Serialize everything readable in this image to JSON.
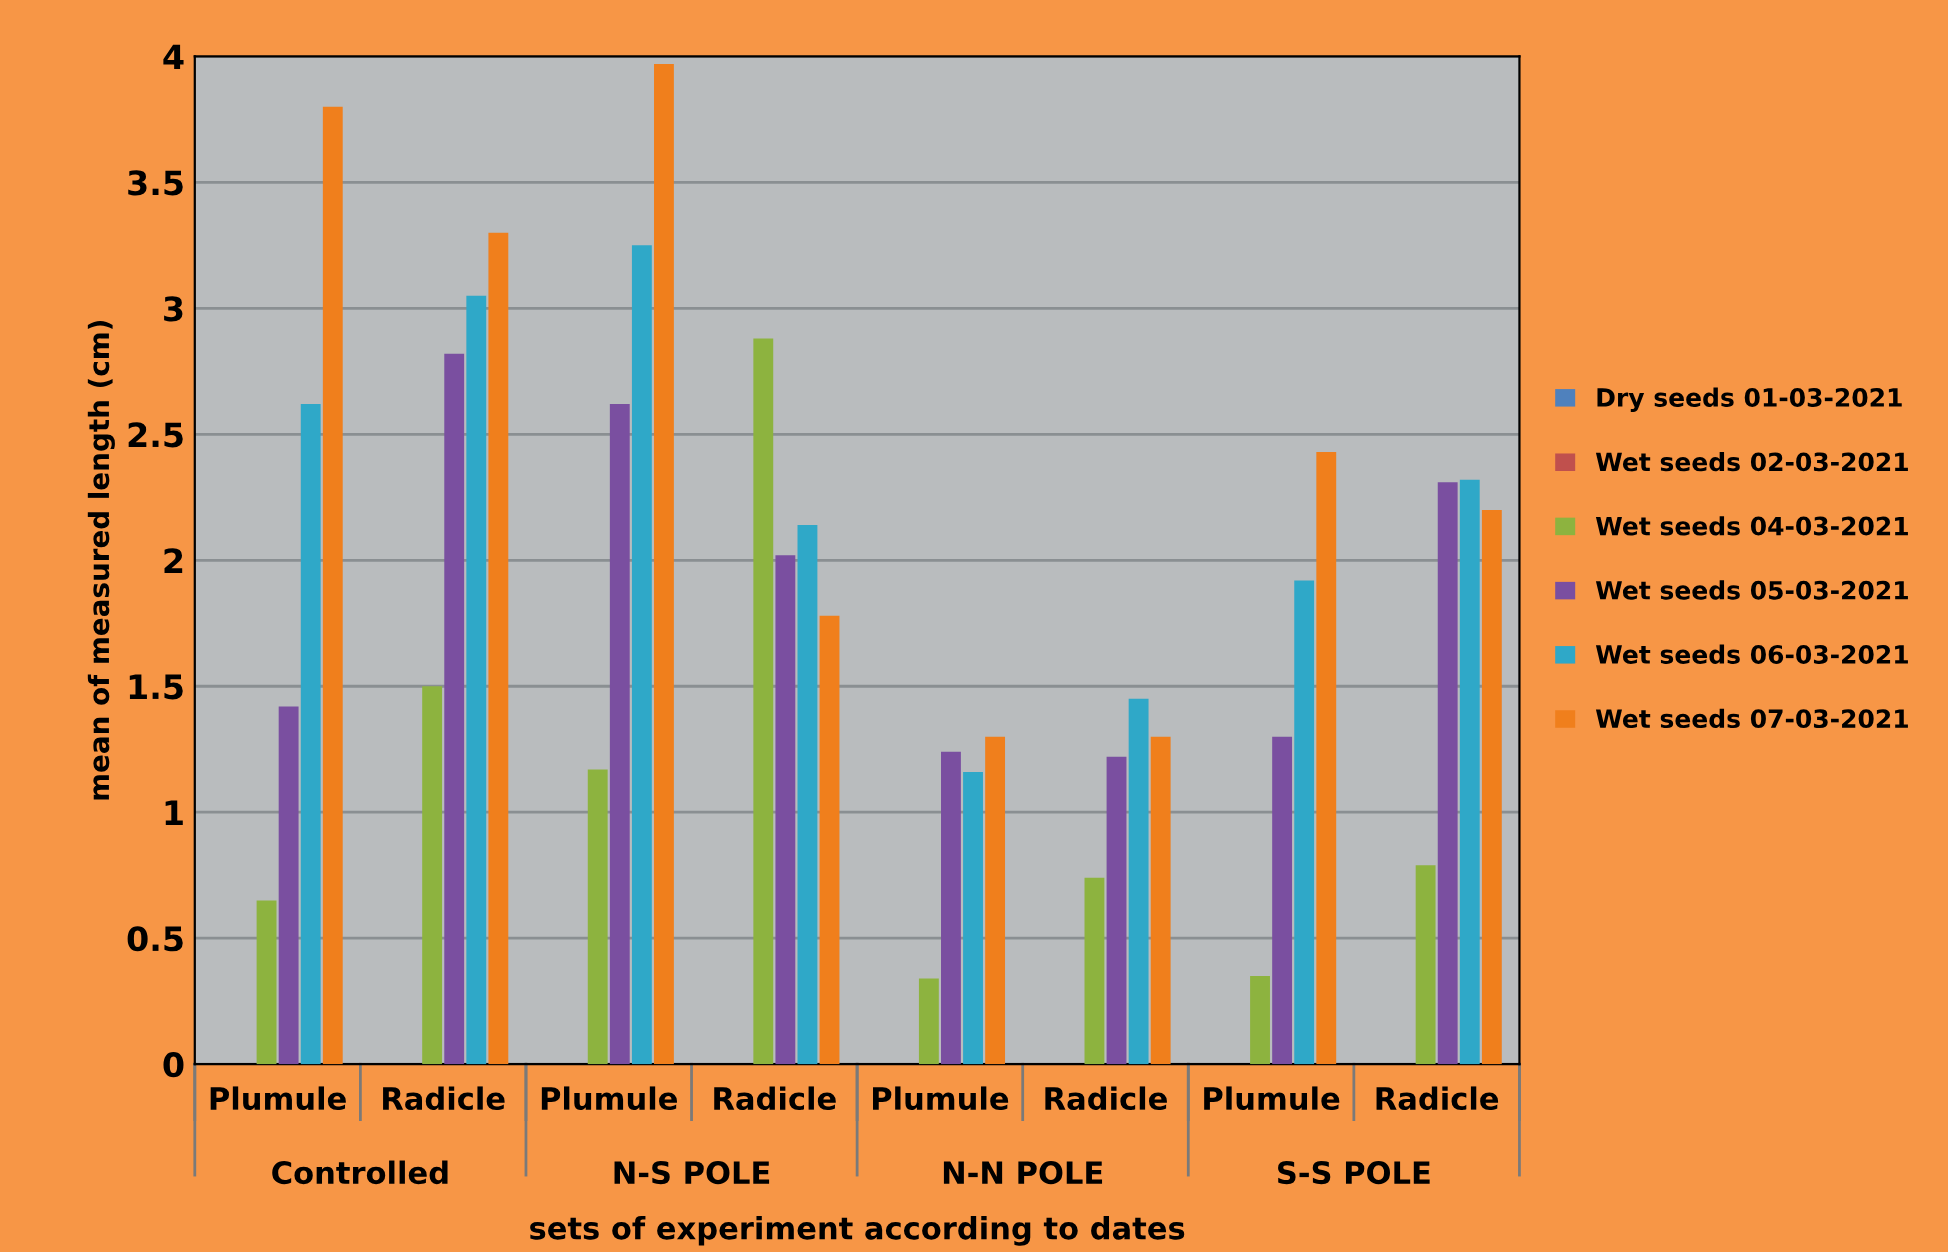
{
  "chart_data": {
    "type": "bar",
    "xlabel": "sets of experiment according to dates",
    "ylabel": "mean of measured length (cm)",
    "categories": [
      "Plumule",
      "Radicle",
      "Plumule",
      "Radicle",
      "Plumule",
      "Radicle",
      "Plumule",
      "Radicle"
    ],
    "annotations": [
      "Controlled",
      "N-S POLE",
      "N-N POLE",
      "S-S POLE"
    ],
    "series": [
      {
        "name": "Dry seeds 01-03-2021",
        "color": "#4f81bd",
        "values": [
          0,
          0,
          0,
          0,
          0,
          0,
          0,
          0
        ]
      },
      {
        "name": "Wet seeds 02-03-2021",
        "color": "#c0504d",
        "values": [
          0,
          0,
          0,
          0,
          0,
          0,
          0,
          0
        ]
      },
      {
        "name": "Wet seeds 04-03-2021",
        "color": "#8db33f",
        "values": [
          0.65,
          1.5,
          1.17,
          2.88,
          0.34,
          0.74,
          0.35,
          0.79
        ]
      },
      {
        "name": "Wet seeds 05-03-2021",
        "color": "#7a4fa0",
        "values": [
          1.42,
          2.82,
          2.62,
          2.02,
          1.24,
          1.22,
          1.3,
          2.31
        ]
      },
      {
        "name": "Wet seeds 06-03-2021",
        "color": "#2fa8c8",
        "values": [
          2.62,
          3.05,
          3.25,
          2.14,
          1.16,
          1.45,
          1.92,
          2.32
        ]
      },
      {
        "name": "Wet seeds 07-03-2021",
        "color": "#f07f1c",
        "values": [
          3.8,
          3.3,
          3.97,
          1.78,
          1.3,
          1.3,
          2.43,
          2.2
        ]
      }
    ],
    "ylim": [
      0,
      4
    ],
    "yticks": [
      0,
      0.5,
      1,
      1.5,
      2,
      2.5,
      3,
      3.5,
      4
    ],
    "grid": "y",
    "legend": "right"
  }
}
